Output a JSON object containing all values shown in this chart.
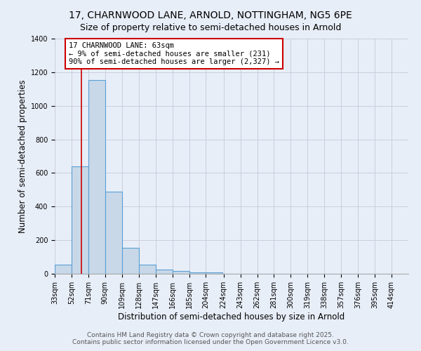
{
  "title1": "17, CHARNWOOD LANE, ARNOLD, NOTTINGHAM, NG5 6PE",
  "title2": "Size of property relative to semi-detached houses in Arnold",
  "xlabel": "Distribution of semi-detached houses by size in Arnold",
  "ylabel": "Number of semi-detached properties",
  "bin_labels": [
    "33sqm",
    "52sqm",
    "71sqm",
    "90sqm",
    "109sqm",
    "128sqm",
    "147sqm",
    "166sqm",
    "185sqm",
    "204sqm",
    "224sqm",
    "243sqm",
    "262sqm",
    "281sqm",
    "300sqm",
    "319sqm",
    "338sqm",
    "357sqm",
    "376sqm",
    "395sqm",
    "414sqm"
  ],
  "bin_edges": [
    33,
    52,
    71,
    90,
    109,
    128,
    147,
    166,
    185,
    204,
    224,
    243,
    262,
    281,
    300,
    319,
    338,
    357,
    376,
    395,
    414
  ],
  "bar_values": [
    55,
    640,
    1155,
    490,
    155,
    55,
    25,
    15,
    10,
    10,
    0,
    0,
    0,
    0,
    0,
    0,
    0,
    0,
    0,
    0
  ],
  "bar_color": "#c8d8e8",
  "bar_edge_color": "#5a9fd4",
  "property_size": 63,
  "property_label": "17 CHARNWOOD LANE: 63sqm",
  "annotation_line1": "← 9% of semi-detached houses are smaller (231)",
  "annotation_line2": "90% of semi-detached houses are larger (2,327) →",
  "vline_color": "#cc0000",
  "annotation_box_edge": "#cc0000",
  "ylim": [
    0,
    1400
  ],
  "yticks": [
    0,
    200,
    400,
    600,
    800,
    1000,
    1200,
    1400
  ],
  "grid_color": "#ccccdd",
  "bg_color": "#e8eef8",
  "footer_line1": "Contains HM Land Registry data © Crown copyright and database right 2025.",
  "footer_line2": "Contains public sector information licensed under the Open Government Licence v3.0.",
  "title1_fontsize": 10,
  "title2_fontsize": 9,
  "axis_label_fontsize": 8.5,
  "tick_fontsize": 7,
  "annotation_fontsize": 7.5,
  "footer_fontsize": 6.5
}
